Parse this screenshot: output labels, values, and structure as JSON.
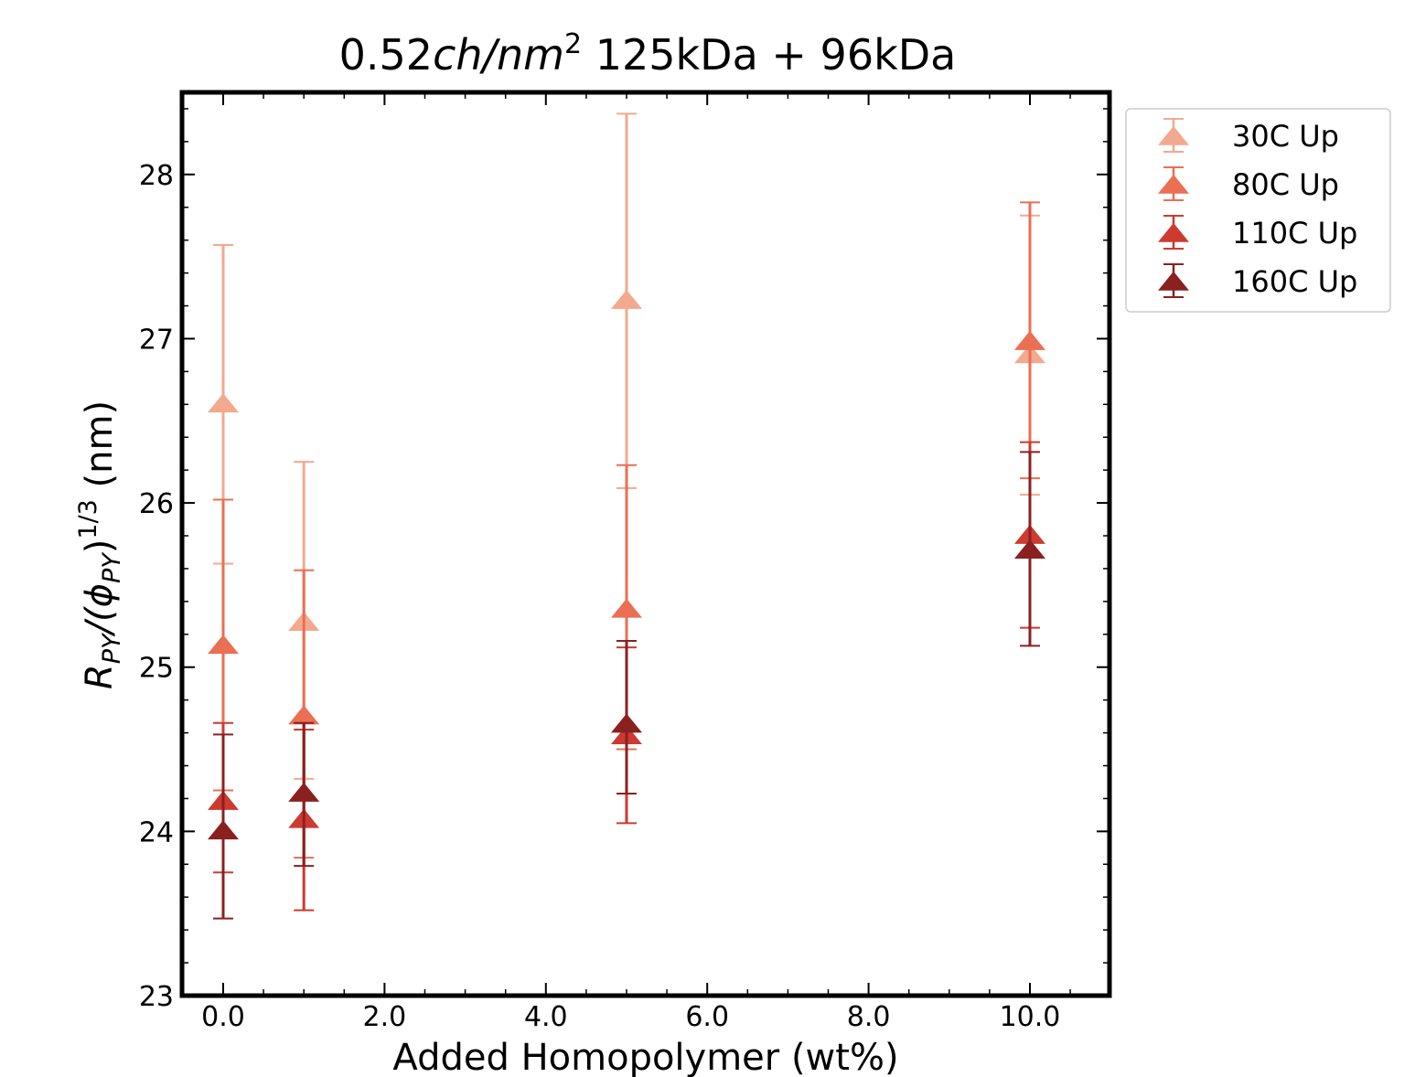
{
  "chart_data": {
    "type": "scatter",
    "title": {
      "prefix": "0.52",
      "unit_italic": "ch/nm",
      "unit_sup": "2",
      "suffix": " 125kDa + 96kDa"
    },
    "xlabel": "Added Homopolymer (wt%)",
    "ylabel": {
      "r": "R",
      "r_sub": "PY",
      "mid": "/(",
      "phi": "ϕ",
      "phi_sub": "PY",
      "close": ")",
      "sup": "1/3",
      "unit": " (nm)"
    },
    "xlim": [
      -0.5,
      10.5
    ],
    "ylim": [
      23,
      28.5
    ],
    "x_ticks": [
      {
        "value": 0,
        "label": "0.0"
      },
      {
        "value": 2,
        "label": "2.0"
      },
      {
        "value": 4,
        "label": "4.0"
      },
      {
        "value": 6,
        "label": "6.0"
      },
      {
        "value": 8,
        "label": "8.0"
      },
      {
        "value": 10,
        "label": "10.0"
      }
    ],
    "y_ticks": [
      {
        "value": 23,
        "label": "23"
      },
      {
        "value": 24,
        "label": "24"
      },
      {
        "value": 25,
        "label": "25"
      },
      {
        "value": 26,
        "label": "26"
      },
      {
        "value": 27,
        "label": "27"
      },
      {
        "value": 28,
        "label": "28"
      }
    ],
    "grid": false,
    "legend_position": "outside-top-right",
    "marker": "triangle-up",
    "series": [
      {
        "name": "30C Up",
        "color": "#f2a98e",
        "points": [
          {
            "x": 0,
            "y": 26.6,
            "err_low": 25.63,
            "err_high": 27.57
          },
          {
            "x": 1,
            "y": 25.27,
            "err_low": 24.32,
            "err_high": 26.25
          },
          {
            "x": 5,
            "y": 27.23,
            "err_low": 26.09,
            "err_high": 28.37
          },
          {
            "x": 10,
            "y": 26.9,
            "err_low": 26.05,
            "err_high": 27.75
          }
        ]
      },
      {
        "name": "80C Up",
        "color": "#ea6f53",
        "points": [
          {
            "x": 0,
            "y": 25.13,
            "err_low": 24.25,
            "err_high": 26.02
          },
          {
            "x": 1,
            "y": 24.7,
            "err_low": 23.84,
            "err_high": 25.59
          },
          {
            "x": 5,
            "y": 25.35,
            "err_low": 24.5,
            "err_high": 26.23
          },
          {
            "x": 10,
            "y": 26.98,
            "err_low": 26.15,
            "err_high": 27.83
          }
        ]
      },
      {
        "name": "110C Up",
        "color": "#cc3a30",
        "points": [
          {
            "x": 0,
            "y": 24.18,
            "err_low": 23.75,
            "err_high": 24.66
          },
          {
            "x": 1,
            "y": 24.07,
            "err_low": 23.52,
            "err_high": 24.62
          },
          {
            "x": 5,
            "y": 24.58,
            "err_low": 24.05,
            "err_high": 25.12
          },
          {
            "x": 10,
            "y": 25.8,
            "err_low": 25.24,
            "err_high": 26.37
          }
        ]
      },
      {
        "name": "160C Up",
        "color": "#8a2020",
        "points": [
          {
            "x": 0,
            "y": 24.0,
            "err_low": 23.47,
            "err_high": 24.59
          },
          {
            "x": 1,
            "y": 24.23,
            "err_low": 23.79,
            "err_high": 24.66
          },
          {
            "x": 5,
            "y": 24.65,
            "err_low": 24.23,
            "err_high": 25.16
          },
          {
            "x": 10,
            "y": 25.71,
            "err_low": 25.13,
            "err_high": 26.31
          }
        ]
      }
    ]
  }
}
